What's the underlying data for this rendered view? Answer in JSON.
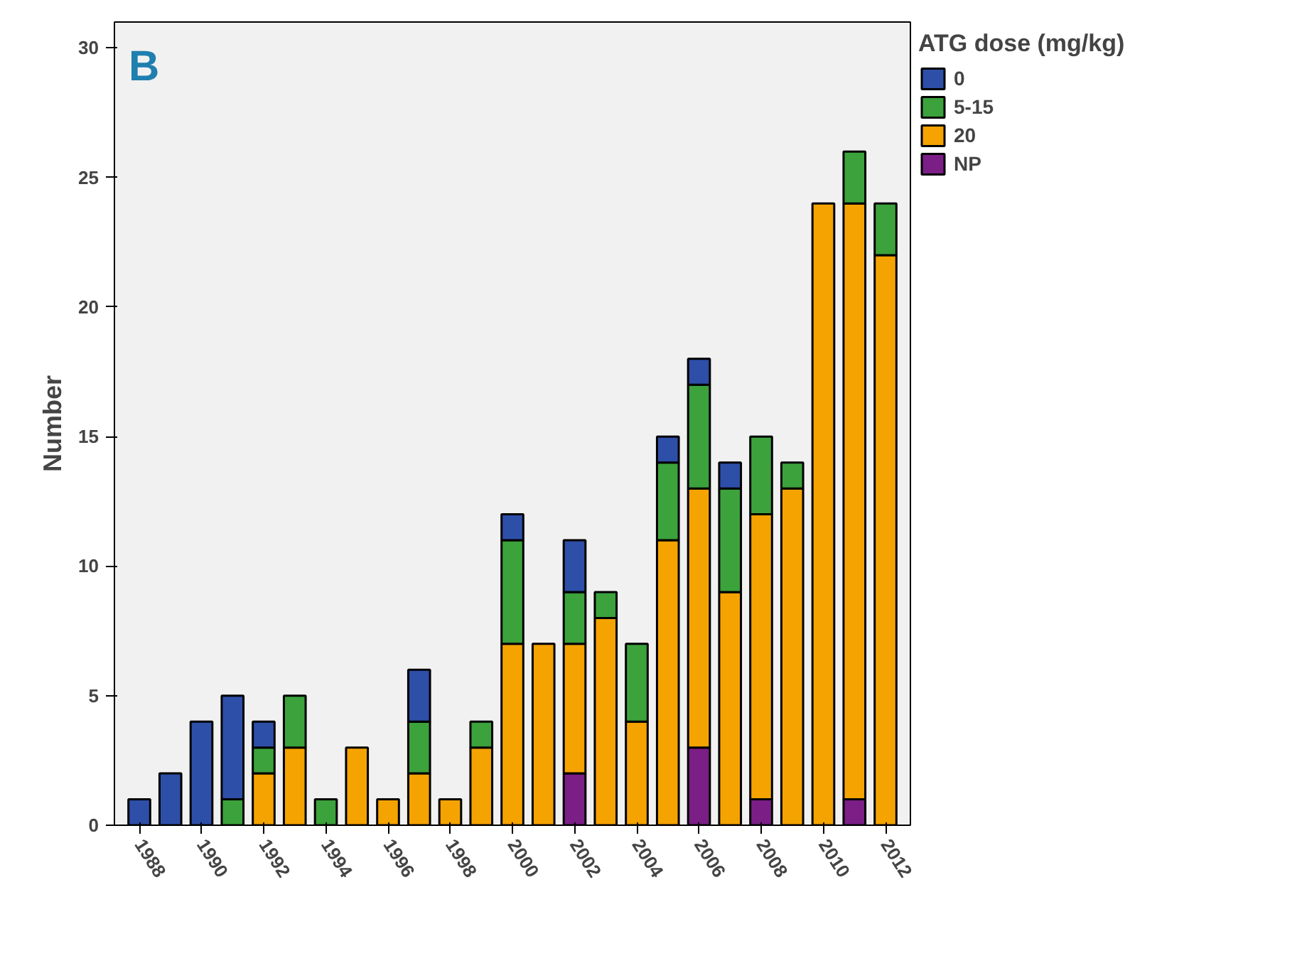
{
  "chart_data": {
    "type": "bar",
    "stacked": true,
    "ylabel": "Number",
    "legend_title": "ATG dose (mg/kg)",
    "annotations": [
      "B"
    ],
    "categories": [
      "1988",
      null,
      "1990",
      null,
      "1992",
      null,
      "1994",
      null,
      "1996",
      null,
      "1998",
      null,
      "2000",
      null,
      "2002",
      null,
      "2004",
      null,
      "2006",
      null,
      "2008",
      null,
      "2010",
      null,
      "2012"
    ],
    "series": [
      {
        "name": "NP",
        "color": "#7b1f86",
        "values": [
          0,
          0,
          0,
          0,
          0,
          0,
          0,
          0,
          0,
          0,
          0,
          0,
          0,
          0,
          2,
          0,
          0,
          0,
          3,
          0,
          1,
          0,
          0,
          1,
          0
        ]
      },
      {
        "name": "20",
        "color": "#f5a300",
        "values": [
          0,
          0,
          0,
          0,
          2,
          3,
          0,
          3,
          1,
          2,
          1,
          3,
          7,
          7,
          5,
          8,
          4,
          11,
          10,
          9,
          11,
          13,
          24,
          23,
          22
        ]
      },
      {
        "name": "5-15",
        "color": "#3ca23c",
        "values": [
          0,
          0,
          0,
          1,
          1,
          2,
          1,
          0,
          0,
          2,
          0,
          1,
          4,
          0,
          2,
          1,
          3,
          3,
          4,
          4,
          3,
          1,
          0,
          2,
          2
        ]
      },
      {
        "name": "0",
        "color": "#2e4fa8",
        "values": [
          1,
          2,
          4,
          4,
          1,
          0,
          0,
          0,
          0,
          2,
          0,
          0,
          1,
          0,
          2,
          0,
          0,
          1,
          1,
          1,
          0,
          0,
          0,
          0,
          0
        ]
      }
    ],
    "ylim": [
      0,
      31
    ],
    "yticks": [
      0,
      5,
      10,
      15,
      20,
      25,
      30
    ],
    "grid": false,
    "legend": "right"
  }
}
